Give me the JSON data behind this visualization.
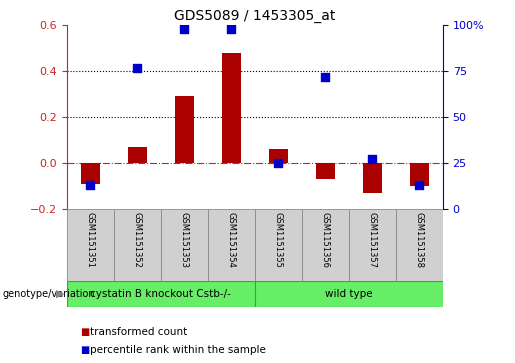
{
  "title": "GDS5089 / 1453305_at",
  "samples": [
    "GSM1151351",
    "GSM1151352",
    "GSM1151353",
    "GSM1151354",
    "GSM1151355",
    "GSM1151356",
    "GSM1151357",
    "GSM1151358"
  ],
  "transformed_count": [
    -0.09,
    0.07,
    0.29,
    0.48,
    0.06,
    -0.07,
    -0.13,
    -0.1
  ],
  "percentile_rank": [
    13,
    77,
    98,
    98,
    25,
    72,
    27,
    13
  ],
  "ylim_left": [
    -0.2,
    0.6
  ],
  "ylim_right": [
    0,
    100
  ],
  "groups": [
    {
      "label": "cystatin B knockout Cstb-/-",
      "start": 0,
      "end": 3,
      "color": "#66ee66"
    },
    {
      "label": "wild type",
      "start": 4,
      "end": 7,
      "color": "#66ee66"
    }
  ],
  "bar_color": "#aa0000",
  "dot_color": "#0000cc",
  "bar_width": 0.4,
  "dot_size": 28,
  "hline_color": "#cc2222",
  "dotted_line_color": "#000000",
  "genotype_label": "genotype/variation",
  "legend_items": [
    {
      "label": "transformed count",
      "color": "#aa0000"
    },
    {
      "label": "percentile rank within the sample",
      "color": "#0000cc"
    }
  ],
  "tick_fontsize": 8,
  "title_fontsize": 10,
  "left_tick_color": "#cc2222",
  "right_tick_color": "#0000cc",
  "sample_box_color": "#d0d0d0",
  "sample_box_edge": "#888888",
  "group_box_edge": "#33aa33"
}
